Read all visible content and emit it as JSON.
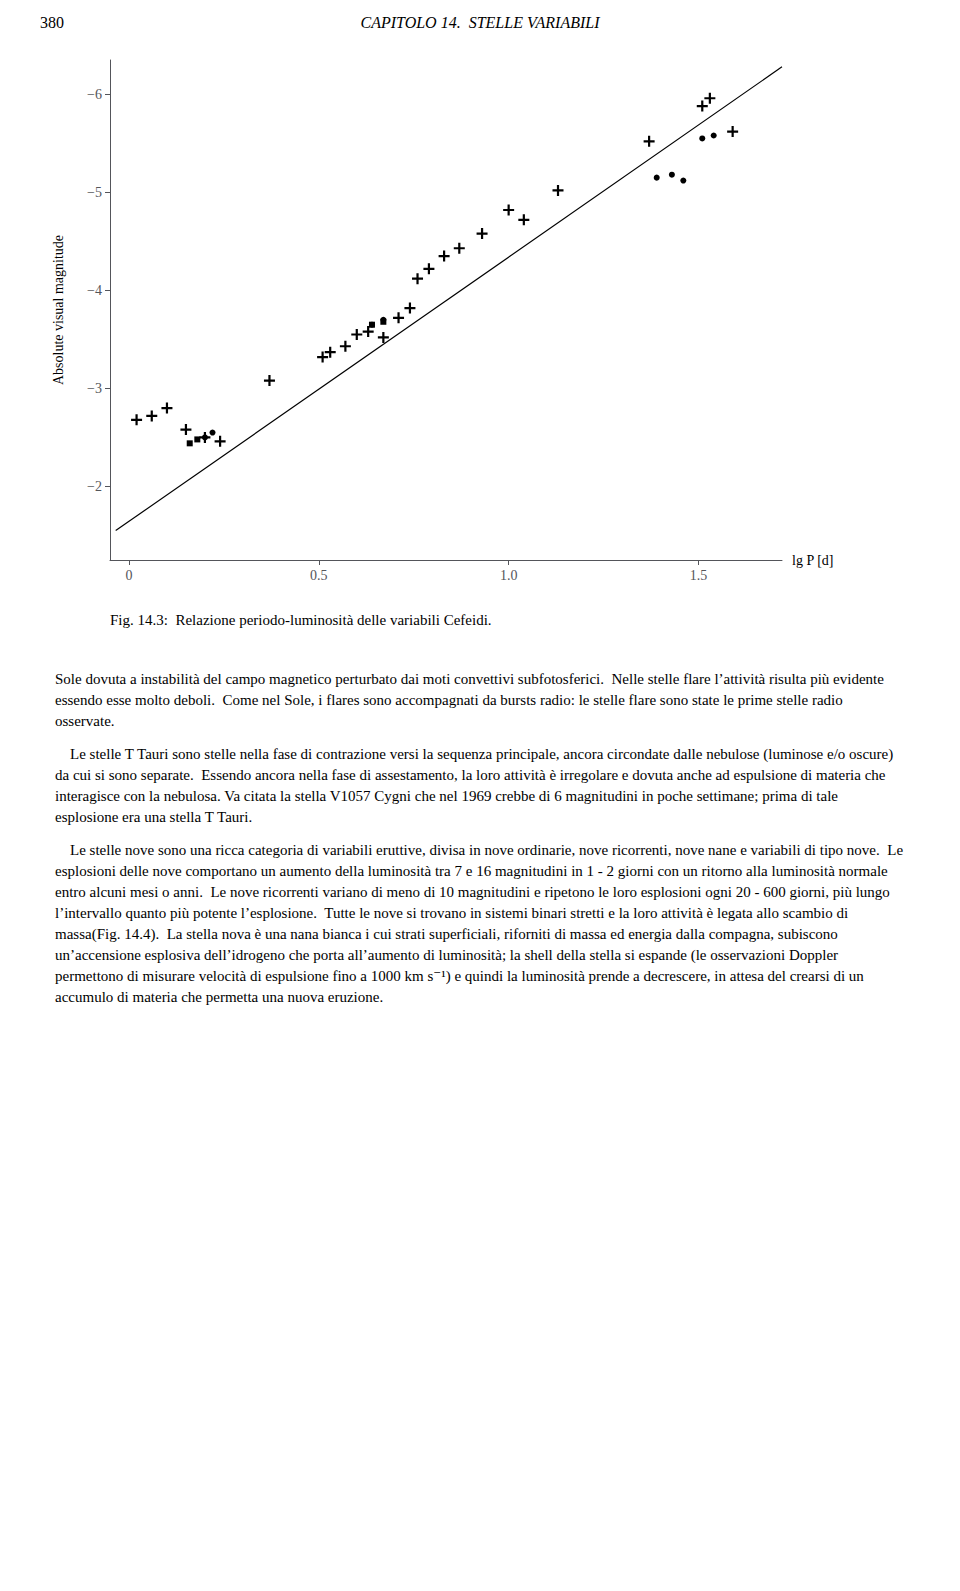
{
  "chart_data": {
    "type": "scatter",
    "title": "Fig. 14.3:  Relazione periodo-luminosità delle variabili Cefeidi.",
    "xlabel": "lg P [d]",
    "ylabel": "Absolute visual magnitude",
    "xlim": [
      -0.05,
      1.72
    ],
    "ylim": [
      -1.25,
      -6.35
    ],
    "xticks": [
      0,
      0.5,
      {
        "value": 1.0,
        "label": "1.0"
      },
      1.5
    ],
    "yticks": [
      {
        "value": -6,
        "label": "−6"
      },
      {
        "value": -5,
        "label": "−5"
      },
      {
        "value": -4,
        "label": "−4"
      },
      {
        "value": -3,
        "label": "−3"
      },
      {
        "value": -2,
        "label": "−2"
      }
    ],
    "grid": false,
    "series": [
      {
        "type": "line",
        "color": "black",
        "line_style": "solid",
        "x": [
          -0.035,
          1.72
        ],
        "values": [
          -1.55,
          -6.28
        ]
      },
      {
        "type": "scatter",
        "marker": "plus",
        "color": "black",
        "x": [
          0.02,
          0.06,
          0.1,
          0.15,
          0.2,
          0.24,
          0.37,
          0.51,
          0.53,
          0.57,
          0.6,
          0.63,
          0.67,
          0.71,
          0.74,
          0.76,
          0.79,
          0.83,
          0.87,
          0.93,
          1.0,
          1.04,
          1.13,
          1.37,
          1.51,
          1.53,
          1.59
        ],
        "values": [
          -2.68,
          -2.72,
          -2.8,
          -2.58,
          -2.5,
          -2.46,
          -3.08,
          -3.32,
          -3.37,
          -3.43,
          -3.55,
          -3.58,
          -3.52,
          -3.72,
          -3.82,
          -4.12,
          -4.22,
          -4.35,
          -4.43,
          -4.58,
          -4.82,
          -4.72,
          -5.02,
          -5.52,
          -5.88,
          -5.96,
          -5.62
        ]
      },
      {
        "type": "scatter",
        "marker": "square",
        "color": "black",
        "x": [
          0.16,
          0.18,
          0.64,
          0.67
        ],
        "values": [
          -2.44,
          -2.48,
          -3.65,
          -3.68
        ]
      },
      {
        "type": "scatter",
        "marker": "circle",
        "color": "black",
        "x": [
          0.2,
          0.22,
          0.64,
          0.67,
          1.39,
          1.43,
          1.46,
          1.51,
          1.54
        ],
        "values": [
          -2.5,
          -2.55,
          -3.65,
          -3.7,
          -5.15,
          -5.18,
          -5.12,
          -5.55,
          -5.58
        ]
      }
    ],
    "annotations": [
      "380",
      "CAPITOLO 14.  STELLE VARIABILI",
      "Sole dovuta a instabilità del campo magnetico perturbato dai moti convettivi subfotosferici.  Nelle stelle flare l’attività risulta più evidente essendo esse molto deboli.  Come nel Sole, i flares sono accompagnati da bursts radio: le stelle flare sono state le prime stelle radio osservate.",
      "    Le stelle T Tauri sono stelle nella fase di contrazione versi la sequenza principale, ancora circondate dalle nebulose (luminose e/o oscure) da cui si sono separate.  Essendo ancora nella fase di assestamento, la loro attività è irregolare e dovuta anche ad espulsione di materia che interagisce con la nebulosa. Va citata la stella V1057 Cygni che nel 1969 crebbe di 6 magnitudini in poche settimane; prima di tale esplosione era una stella T Tauri.",
      "    Le stelle nove sono una ricca categoria di variabili eruttive, divisa in nove ordinarie, nove ricorrenti, nove nane e variabili di tipo nove.  Le esplosioni delle nove comportano un aumento della luminosità tra 7 e 16 magnitudini in 1 - 2 giorni con un ritorno alla luminosità normale entro alcuni mesi o anni.  Le nove ricorrenti variano di meno di 10 magnitudini e ripetono le loro esplosioni ogni 20 - 600 giorni, più lungo l’intervallo quanto più potente l’esplosione.  Tutte le nove si trovano in sistemi binari stretti e la loro attività è legata allo scambio di massa(Fig. 14.4).  La stella nova è una nana bianca i cui strati superficiali, riforniti di massa ed energia dalla compagna, subiscono un’accensione esplosiva dell’idrogeno che porta all’aumento di luminosità; la shell della stella si espande (le osservazioni Doppler permettono di misurare velocità di espulsione fino a 1000 km s⁻¹) e quindi la luminosità prende a decrescere, in attesa del crearsi di un accumulo di materia che permetta una nuova eruzione."
    ]
  }
}
